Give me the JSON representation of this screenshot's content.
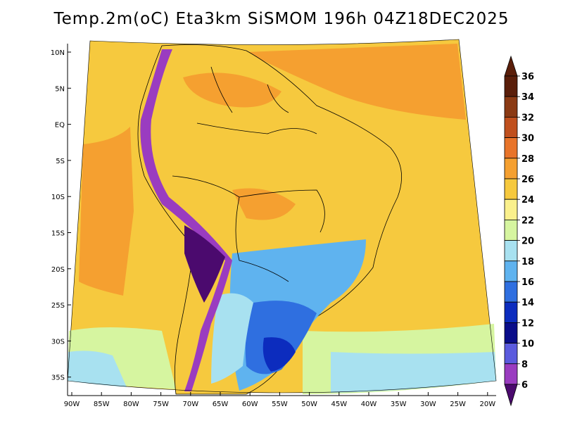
{
  "title": "Temp.2m(oC) Eta3km SiSMOM 196h 04Z18DEC2025",
  "y_axis": {
    "ticks": [
      "10N",
      "5N",
      "EQ",
      "5S",
      "10S",
      "15S",
      "20S",
      "25S",
      "30S",
      "35S"
    ]
  },
  "x_axis": {
    "ticks": [
      "90W",
      "85W",
      "80W",
      "75W",
      "70W",
      "65W",
      "60W",
      "55W",
      "50W",
      "45W",
      "40W",
      "35W",
      "30W",
      "25W",
      "20W"
    ]
  },
  "colorbar": {
    "labels": [
      "36",
      "34",
      "32",
      "30",
      "28",
      "26",
      "24",
      "22",
      "20",
      "18",
      "16",
      "14",
      "12",
      "10",
      "8",
      "6"
    ],
    "colors": [
      "#5a1e0a",
      "#8b3a14",
      "#c0501e",
      "#e8742a",
      "#f5a030",
      "#f6c93e",
      "#faf08c",
      "#d6f5a0",
      "#a8e1f0",
      "#5fb3ef",
      "#2f6fe0",
      "#0c2cbe",
      "#0a0d8a",
      "#5b5bde",
      "#9a3cc0",
      "#4b0a6e"
    ],
    "top_arrow_color": "#5a1e0a",
    "bottom_arrow_color": "#4b0a6e"
  }
}
